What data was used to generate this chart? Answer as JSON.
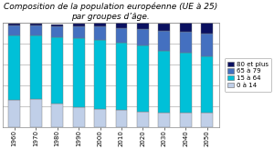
{
  "title": "Composition de la population européenne (UE à 25)\npar groupes d’âge.",
  "years": [
    1960,
    1970,
    1980,
    1990,
    2000,
    2010,
    2020,
    2030,
    2040,
    2050
  ],
  "groups": [
    "0 à 14",
    "15 à 64",
    "65 à 79",
    "80 et plus"
  ],
  "colors": [
    "#c0cfe8",
    "#00c0d8",
    "#4470c0",
    "#0a1060"
  ],
  "data": {
    "0 à 14": [
      26,
      27,
      22,
      19,
      17,
      16,
      15,
      14,
      14,
      14
    ],
    "15 à 64": [
      62,
      61,
      64,
      66,
      66,
      65,
      63,
      59,
      57,
      54
    ],
    "65 à 79": [
      9,
      9,
      10,
      11,
      13,
      14,
      16,
      19,
      20,
      21
    ],
    "80 et plus": [
      2,
      2,
      2,
      3,
      4,
      5,
      6,
      7,
      9,
      11
    ]
  },
  "ylim": [
    0,
    100
  ],
  "background_color": "#ffffff",
  "grid_color": "#b0b0b0",
  "title_fontsize": 6.5,
  "tick_fontsize": 5,
  "legend_fontsize": 5,
  "bar_width": 0.55
}
